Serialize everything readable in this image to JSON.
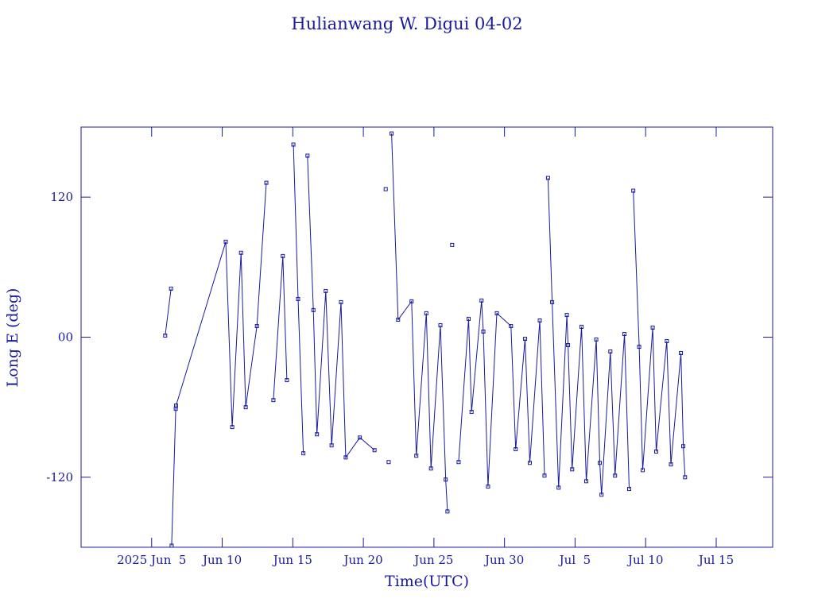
{
  "chart_data": {
    "type": "line",
    "title": "Hulianwang W. Digui 04-02",
    "xlabel": "Time(UTC)",
    "ylabel": "Long E (deg)",
    "color": "#1a1a9c",
    "xlim": [
      "2025-05-31",
      "2025-07-19"
    ],
    "ylim": [
      -180,
      180
    ],
    "xticks": [
      {
        "value": "2025-06-05",
        "label": "2025 Jun  5"
      },
      {
        "value": "2025-06-10",
        "label": "Jun 10"
      },
      {
        "value": "2025-06-15",
        "label": "Jun 15"
      },
      {
        "value": "2025-06-20",
        "label": "Jun 20"
      },
      {
        "value": "2025-06-25",
        "label": "Jun 25"
      },
      {
        "value": "2025-06-30",
        "label": "Jun 30"
      },
      {
        "value": "2025-07-05",
        "label": "Jul  5"
      },
      {
        "value": "2025-07-10",
        "label": "Jul 10"
      },
      {
        "value": "2025-07-15",
        "label": "Jul 15"
      }
    ],
    "yticks": [
      -120,
      {
        "value": 0,
        "label": "00"
      },
      120
    ],
    "x": [
      "2025-06-05T23:00",
      "2025-06-06T09:00",
      null,
      "2025-06-06T10:00",
      "2025-06-06T17:00",
      "2025-06-06T17:30",
      "2025-06-10T06:00",
      "2025-06-10T17:00",
      "2025-06-11T08:00",
      "2025-06-11T16:00",
      "2025-06-12T11:00",
      "2025-06-13T03:00",
      null,
      "2025-06-13T15:00",
      "2025-06-14T07:00",
      "2025-06-14T14:00",
      null,
      "2025-06-15T01:00",
      "2025-06-15T09:00",
      "2025-06-15T18:00",
      null,
      "2025-06-16T01:00",
      "2025-06-16T11:00",
      "2025-06-16T17:00",
      "2025-06-17T08:00",
      "2025-06-17T18:00",
      "2025-06-18T10:00",
      "2025-06-18T18:00",
      "2025-06-19T18:00",
      "2025-06-20T19:00",
      null,
      "2025-06-21T14:00",
      null,
      "2025-06-21T19:00",
      null,
      "2025-06-22T00:00",
      "2025-06-22T11:00",
      "2025-06-23T10:00",
      "2025-06-23T18:00",
      "2025-06-24T11:00",
      "2025-06-24T19:00",
      "2025-06-25T11:00",
      "2025-06-25T20:00",
      "2025-06-25T23:00",
      null,
      "2025-06-26T07:00",
      null,
      "2025-06-26T18:00",
      "2025-06-27T11:00",
      "2025-06-27T16:00",
      "2025-06-28T09:00",
      "2025-06-28T12:00",
      "2025-06-28T20:00",
      "2025-06-29T11:00",
      "2025-06-30T11:00",
      "2025-06-30T19:00",
      "2025-07-01T11:00",
      "2025-07-01T19:00",
      "2025-07-02T12:00",
      "2025-07-02T20:00",
      null,
      "2025-07-03T02:00",
      "2025-07-03T09:00",
      "2025-07-03T20:00",
      "2025-07-04T10:00",
      "2025-07-04T12:00",
      "2025-07-04T19:00",
      "2025-07-05T11:00",
      "2025-07-05T19:00",
      "2025-07-06T12:00",
      "2025-07-06T18:00",
      "2025-07-06T21:00",
      "2025-07-07T12:00",
      "2025-07-07T20:00",
      "2025-07-08T12:00",
      "2025-07-08T20:00",
      null,
      "2025-07-09T03:00",
      "2025-07-09T13:00",
      "2025-07-09T19:00",
      "2025-07-10T12:00",
      "2025-07-10T18:00",
      "2025-07-11T12:00",
      "2025-07-11T19:00",
      "2025-07-12T12:00",
      "2025-07-12T16:00",
      "2025-07-12T19:00"
    ],
    "values": [
      1.4,
      41.6,
      null,
      -178.6,
      -61.4,
      -58.6,
      81.8,
      -77,
      72.3,
      -60,
      9.5,
      132.3,
      null,
      -53.9,
      69.5,
      -36.8,
      null,
      165,
      32.7,
      -99.5,
      null,
      155.5,
      23.2,
      -83.2,
      39.5,
      -92.7,
      30,
      -103,
      -86,
      -96.8,
      null,
      126.8,
      null,
      -107,
      null,
      174.5,
      15,
      30.7,
      -101.6,
      20.5,
      -112.5,
      10.2,
      -122,
      -149.3,
      null,
      79,
      null,
      -107,
      15.7,
      -64,
      31.4,
      4.8,
      -128,
      20.5,
      9.5,
      -96,
      -1.4,
      -107.7,
      14.3,
      -118.6,
      null,
      136.4,
      30,
      -128.9,
      19,
      -6.8,
      -113.2,
      8.9,
      -123.4,
      -2,
      -107.7,
      -135,
      -12.3,
      -118.6,
      2.7,
      -130,
      null,
      125.5,
      -8.2,
      -113.9,
      8.2,
      -98,
      -3.4,
      -109,
      -13.6,
      -93.4,
      -120
    ]
  }
}
